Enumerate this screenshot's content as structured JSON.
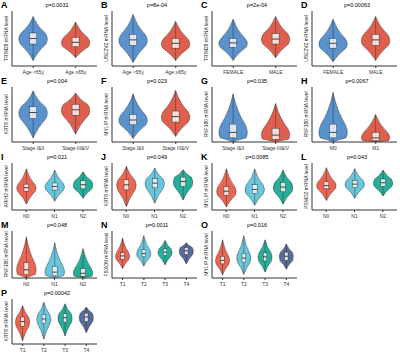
{
  "chart_data": [
    {
      "label": "A",
      "type": "violin",
      "ylabel": "TRIM28 mRNA level",
      "annotation": "p=0.0031",
      "tick_labels": "x",
      "categories": [
        "Age <65y",
        "Age ≥65y"
      ],
      "colors": [
        "#3c7fc4",
        "#d8432e"
      ],
      "ylim": [
        0,
        10
      ],
      "min": [
        1,
        1.5
      ],
      "q1": [
        4,
        3.5
      ],
      "median": [
        5,
        4.3
      ],
      "q3": [
        6,
        5.2
      ],
      "max": [
        9,
        8
      ]
    },
    {
      "label": "B",
      "type": "violin",
      "ylabel": "UBE2V2 mRNA level",
      "annotation": "p=8e-04",
      "tick_labels": "x",
      "categories": [
        "Age <65y",
        "Age ≥65y"
      ],
      "colors": [
        "#3c7fc4",
        "#d8432e"
      ],
      "ylim": [
        0,
        8
      ],
      "min": [
        0.5,
        0.8
      ],
      "q1": [
        3,
        2.6
      ],
      "median": [
        3.8,
        3.3
      ],
      "q3": [
        4.6,
        4
      ],
      "max": [
        7.5,
        6.5
      ]
    },
    {
      "label": "C",
      "type": "violin",
      "ylabel": "TRIM28 mRNA level",
      "annotation": "p=2e-04",
      "tick_labels": "x",
      "categories": [
        "FEMALE",
        "MALE"
      ],
      "colors": [
        "#3c7fc4",
        "#d8432e"
      ],
      "ylim": [
        0,
        10
      ],
      "min": [
        1,
        1.5
      ],
      "q1": [
        3.4,
        4
      ],
      "median": [
        4.2,
        4.9
      ],
      "q3": [
        5,
        5.9
      ],
      "max": [
        8.5,
        9
      ]
    },
    {
      "label": "D",
      "type": "violin",
      "ylabel": "UBE2V2 mRNA level",
      "annotation": "p=0.00063",
      "tick_labels": "x",
      "categories": [
        "FEMALE",
        "MALE"
      ],
      "colors": [
        "#3c7fc4",
        "#d8432e"
      ],
      "ylim": [
        0,
        8
      ],
      "min": [
        0.6,
        0.8
      ],
      "q1": [
        2.6,
        3
      ],
      "median": [
        3.3,
        3.8
      ],
      "q3": [
        4,
        4.6
      ],
      "max": [
        6.8,
        7.2
      ]
    },
    {
      "label": "E",
      "type": "violin",
      "ylabel": "KRT8 mRNA level",
      "annotation": "p=0.004",
      "tick_labels": "x",
      "categories": [
        "Stage I&II",
        "Stage III&IV"
      ],
      "colors": [
        "#3c7fc4",
        "#d8432e"
      ],
      "ylim": [
        0,
        14
      ],
      "min": [
        1,
        2
      ],
      "q1": [
        6,
        6.8
      ],
      "median": [
        7.5,
        8.2
      ],
      "q3": [
        9,
        9.6
      ],
      "max": [
        13,
        12.5
      ]
    },
    {
      "label": "F",
      "type": "violin",
      "ylabel": "MYLIP mRNA level",
      "annotation": "p=0.023",
      "tick_labels": "x",
      "categories": [
        "Stage I&II",
        "Stage III&IV"
      ],
      "colors": [
        "#3c7fc4",
        "#d8432e"
      ],
      "ylim": [
        0,
        8
      ],
      "min": [
        0.5,
        0.8
      ],
      "q1": [
        2.5,
        2.9
      ],
      "median": [
        3.2,
        3.7
      ],
      "q3": [
        4,
        4.5
      ],
      "max": [
        7,
        7.5
      ]
    },
    {
      "label": "G",
      "type": "violin",
      "ylabel": "RNF180 mRNA level",
      "annotation": "p=0.035",
      "tick_labels": "x",
      "categories": [
        "Stage I&II",
        "Stage III&IV"
      ],
      "colors": [
        "#3c7fc4",
        "#d8432e"
      ],
      "ylim": [
        0,
        4
      ],
      "min": [
        0,
        0
      ],
      "q1": [
        0.3,
        0.2
      ],
      "median": [
        0.7,
        0.5
      ],
      "q3": [
        1.3,
        1
      ],
      "max": [
        3.5,
        2.8
      ]
    },
    {
      "label": "H",
      "type": "violin",
      "ylabel": "RNF180 mRNA level",
      "annotation": "p=0.0067",
      "tick_labels": "x",
      "categories": [
        "M0",
        "M1"
      ],
      "colors": [
        "#3c7fc4",
        "#d8432e"
      ],
      "ylim": [
        0,
        4
      ],
      "min": [
        0,
        0
      ],
      "q1": [
        0.3,
        0.1
      ],
      "median": [
        0.7,
        0.3
      ],
      "q3": [
        1.3,
        0.7
      ],
      "max": [
        3.6,
        2
      ]
    },
    {
      "label": "I",
      "type": "violin",
      "ylabel": "ARIH2 mRNA level",
      "annotation": "p=0.021",
      "tick_labels": "x",
      "categories": [
        "N0",
        "N1",
        "N2"
      ],
      "colors": [
        "#e64b35",
        "#4dbbd5",
        "#00a087"
      ],
      "ylim": [
        0,
        8
      ],
      "min": [
        1,
        1.5,
        2
      ],
      "q1": [
        3.2,
        3.4,
        3.6
      ],
      "median": [
        3.8,
        4,
        4.3
      ],
      "q3": [
        4.4,
        4.6,
        5
      ],
      "max": [
        7,
        6.8,
        6.5
      ]
    },
    {
      "label": "J",
      "type": "violin",
      "ylabel": "KRT8 mRNA level",
      "annotation": "p=0.049",
      "tick_labels": "x",
      "categories": [
        "N0",
        "N1",
        "N2"
      ],
      "colors": [
        "#e64b35",
        "#4dbbd5",
        "#00a087"
      ],
      "ylim": [
        0,
        14
      ],
      "min": [
        1,
        2,
        3
      ],
      "q1": [
        6,
        6.6,
        7
      ],
      "median": [
        7.5,
        8,
        8.5
      ],
      "q3": [
        9,
        9.3,
        9.8
      ],
      "max": [
        13,
        12.5,
        12
      ]
    },
    {
      "label": "K",
      "type": "violin",
      "ylabel": "MYLIP mRNA level",
      "annotation": "p=0.0085",
      "tick_labels": "x",
      "categories": [
        "N0",
        "N1",
        "N2"
      ],
      "colors": [
        "#e64b35",
        "#4dbbd5",
        "#00a087"
      ],
      "ylim": [
        0,
        8
      ],
      "min": [
        0.5,
        0.8,
        1
      ],
      "q1": [
        2.5,
        2.8,
        3.1
      ],
      "median": [
        3.2,
        3.5,
        3.9
      ],
      "q3": [
        4,
        4.3,
        4.7
      ],
      "max": [
        7,
        7,
        6.8
      ]
    },
    {
      "label": "L",
      "type": "violin",
      "ylabel": "PSMD2 mRNA level",
      "annotation": "p=0.043",
      "tick_labels": "x",
      "categories": [
        "N0",
        "N1",
        "N2"
      ],
      "colors": [
        "#e64b35",
        "#4dbbd5",
        "#00a087"
      ],
      "ylim": [
        0,
        10
      ],
      "min": [
        2,
        2.5,
        3
      ],
      "q1": [
        4.5,
        4.8,
        5
      ],
      "median": [
        5.2,
        5.5,
        5.8
      ],
      "q3": [
        6,
        6.3,
        6.6
      ],
      "max": [
        9,
        8.8,
        8.5
      ]
    },
    {
      "label": "M",
      "type": "violin",
      "ylabel": "RNF180 mRNA level",
      "annotation": "p=0.048",
      "tick_labels": "x",
      "categories": [
        "N0",
        "N1",
        "N2"
      ],
      "colors": [
        "#e64b35",
        "#4dbbd5",
        "#00a087"
      ],
      "ylim": [
        0,
        4
      ],
      "min": [
        0,
        0,
        0
      ],
      "q1": [
        0.3,
        0.2,
        0.15
      ],
      "median": [
        0.7,
        0.5,
        0.4
      ],
      "q3": [
        1.3,
        1,
        0.8
      ],
      "max": [
        3.5,
        3,
        2.5
      ]
    },
    {
      "label": "N",
      "type": "violin",
      "ylabel": "FBXO9 mRNA level",
      "annotation": "p=0.0011",
      "tick_labels": "x",
      "categories": [
        "T1",
        "T2",
        "T3",
        "T4"
      ],
      "colors": [
        "#e64b35",
        "#4dbbd5",
        "#00a087",
        "#3c5488"
      ],
      "ylim": [
        0,
        10
      ],
      "min": [
        2,
        2.5,
        2.8,
        3
      ],
      "q1": [
        4,
        4.5,
        4.8,
        5
      ],
      "median": [
        4.7,
        5.2,
        5.5,
        5.8
      ],
      "q3": [
        5.4,
        6,
        6.2,
        6.5
      ],
      "max": [
        8.5,
        9,
        8,
        7.5
      ]
    },
    {
      "label": "O",
      "type": "violin",
      "ylabel": "MYLIP mRNA level",
      "annotation": "p=0.016",
      "tick_labels": "x",
      "categories": [
        "T1",
        "T2",
        "T3",
        "T4"
      ],
      "colors": [
        "#e64b35",
        "#4dbbd5",
        "#00a087",
        "#3c5488"
      ],
      "ylim": [
        0,
        8
      ],
      "min": [
        0.5,
        0.6,
        1,
        1.5
      ],
      "q1": [
        2.4,
        2.7,
        2.9,
        3
      ],
      "median": [
        3,
        3.4,
        3.6,
        3.7
      ],
      "q3": [
        3.7,
        4.2,
        4.3,
        4.4
      ],
      "max": [
        6.5,
        7.2,
        6.5,
        5.8
      ]
    },
    {
      "label": "P",
      "type": "violin",
      "ylabel": "KRT8 mRNA level",
      "annotation": "p=0.00042",
      "tick_labels": "x",
      "categories": [
        "T1",
        "T2",
        "T3",
        "T4"
      ],
      "colors": [
        "#e64b35",
        "#4dbbd5",
        "#00a087",
        "#3c5488"
      ],
      "ylim": [
        0,
        14
      ],
      "min": [
        1,
        1.5,
        2.5,
        3.5
      ],
      "q1": [
        5.5,
        6.4,
        6.8,
        7
      ],
      "median": [
        7,
        7.8,
        8.2,
        8.4
      ],
      "q3": [
        8.4,
        9.2,
        9.5,
        9.6
      ],
      "max": [
        12,
        13,
        12.5,
        11.5
      ]
    }
  ]
}
